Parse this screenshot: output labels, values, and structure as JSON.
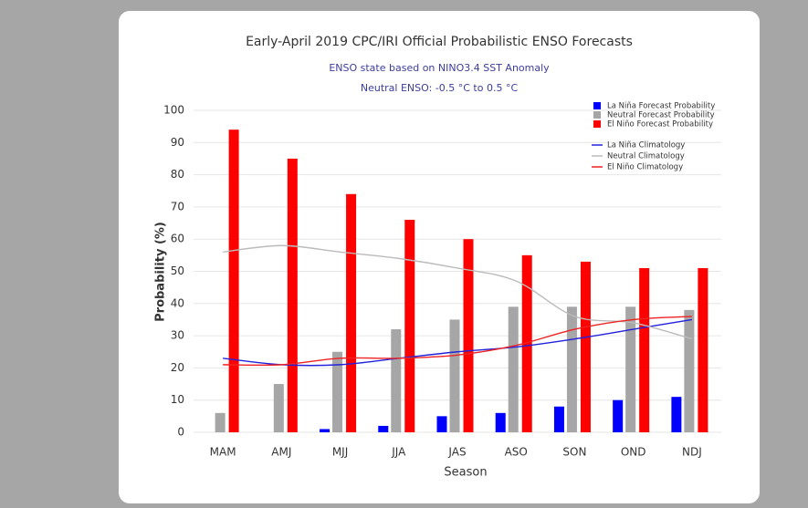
{
  "chart_data": {
    "type": "bar",
    "title": "Early-April 2019 CPC/IRI Official Probabilistic ENSO Forecasts",
    "subtitle": [
      "ENSO state based on NINO3.4 SST Anomaly",
      "Neutral ENSO: -0.5 °C to 0.5 °C"
    ],
    "xlabel": "Season",
    "ylabel": "Probability (%)",
    "categories": [
      "MAM",
      "AMJ",
      "MJJ",
      "JJA",
      "JAS",
      "ASO",
      "SON",
      "OND",
      "NDJ"
    ],
    "series": [
      {
        "name": "La Niña Forecast Probability",
        "color": "#0000ff",
        "values": [
          0,
          0,
          1,
          2,
          5,
          6,
          8,
          10,
          11
        ]
      },
      {
        "name": "Neutral Forecast Probability",
        "color": "#a6a6a6",
        "values": [
          6,
          15,
          25,
          32,
          35,
          39,
          39,
          39,
          38
        ]
      },
      {
        "name": "El Niño Forecast Probability",
        "color": "#ff0000",
        "values": [
          94,
          85,
          74,
          66,
          60,
          55,
          53,
          51,
          51
        ]
      }
    ],
    "climatology": [
      {
        "name": "La Niña Climatology",
        "color": "#2222dd",
        "values": [
          23,
          21,
          21,
          23,
          25,
          26.5,
          29,
          32,
          35
        ]
      },
      {
        "name": "Neutral Climatology",
        "color": "#bbbbbb",
        "values": [
          56,
          58,
          56,
          54,
          51,
          47,
          36,
          34,
          29
        ]
      },
      {
        "name": "El Niño Climatology",
        "color": "#ee2222",
        "values": [
          21,
          21,
          23,
          23,
          24,
          27,
          32,
          35,
          36
        ]
      }
    ],
    "ylim": [
      0,
      100
    ],
    "yticks": [
      0,
      10,
      20,
      30,
      40,
      50,
      60,
      70,
      80,
      90,
      100
    ],
    "grid": true
  }
}
